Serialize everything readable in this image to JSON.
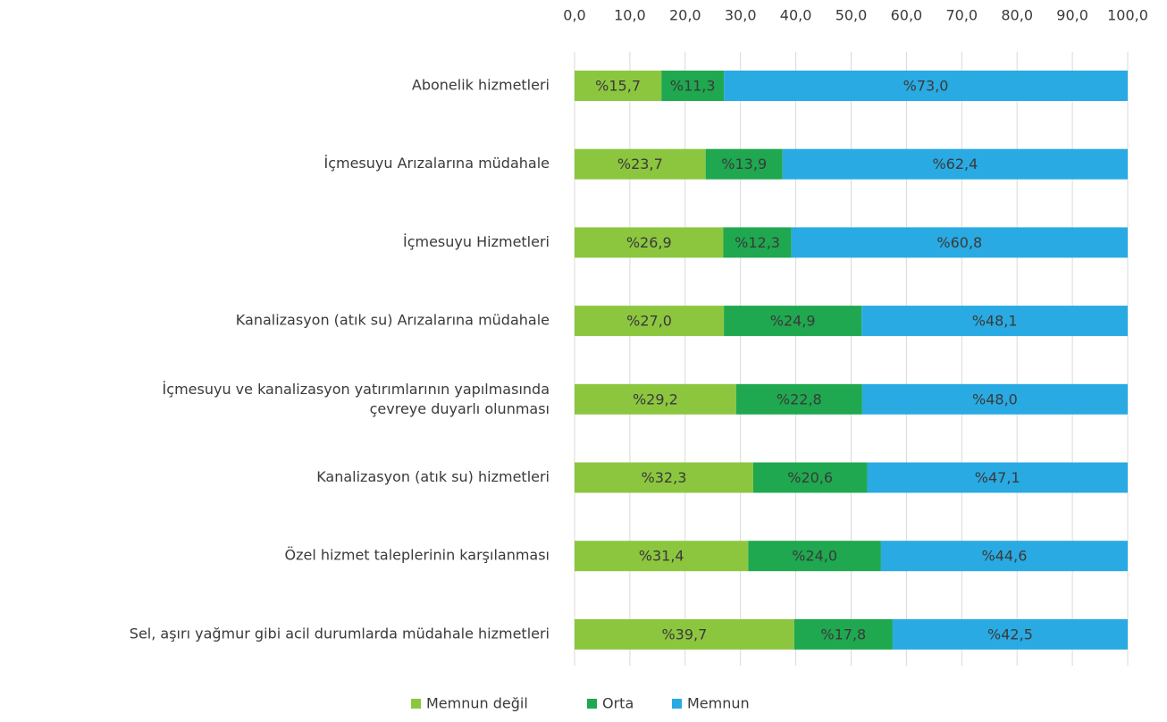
{
  "chart_data": {
    "type": "stacked_barh",
    "categories": [
      "Abonelik hizmetleri",
      "İçmesuyu Arızalarına müdahale",
      "İçmesuyu Hizmetleri",
      "Kanalizasyon (atık su) Arızalarına müdahale",
      "İçmesuyu ve kanalizasyon yatırımlarının yapılmasında\nçevreye duyarlı olunması",
      "Kanalizasyon (atık su) hizmetleri",
      "Özel hizmet taleplerinin karşılanması",
      "Sel, aşırı yağmur gibi acil durumlarda müdahale hizmetleri"
    ],
    "series": [
      {
        "name": "Memnun değil",
        "color": "#8cc63f",
        "values": [
          15.7,
          23.7,
          26.9,
          27.0,
          29.2,
          32.3,
          31.4,
          39.7
        ],
        "value_labels": [
          "%15,7",
          "%23,7",
          "%26,9",
          "%27,0",
          "%29,2",
          "%32,3",
          "%31,4",
          "%39,7"
        ]
      },
      {
        "name": "Orta",
        "color": "#1fa84f",
        "values": [
          11.3,
          13.9,
          12.3,
          24.9,
          22.8,
          20.6,
          24.0,
          17.8
        ],
        "value_labels": [
          "%11,3",
          "%13,9",
          "%12,3",
          "%24,9",
          "%22,8",
          "%20,6",
          "%24,0",
          "%17,8"
        ]
      },
      {
        "name": "Memnun",
        "color": "#29aae2",
        "values": [
          73.0,
          62.4,
          60.8,
          48.1,
          48.0,
          47.1,
          44.6,
          42.5
        ],
        "value_labels": [
          "%73,0",
          "%62,4",
          "%60,8",
          "%48,1",
          "%48,0",
          "%47,1",
          "%44,6",
          "%42,5"
        ]
      }
    ],
    "xlim": [
      0,
      100
    ],
    "xticks": [
      {
        "value": 0,
        "label": "0,0"
      },
      {
        "value": 10,
        "label": "10,0"
      },
      {
        "value": 20,
        "label": "20,0"
      },
      {
        "value": 30,
        "label": "30,0"
      },
      {
        "value": 40,
        "label": "40,0"
      },
      {
        "value": 50,
        "label": "50,0"
      },
      {
        "value": 60,
        "label": "60,0"
      },
      {
        "value": 70,
        "label": "70,0"
      },
      {
        "value": 80,
        "label": "80,0"
      },
      {
        "value": 90,
        "label": "90,0"
      },
      {
        "value": 100,
        "label": "100,0"
      }
    ],
    "grid": true,
    "legend": "bottom"
  }
}
